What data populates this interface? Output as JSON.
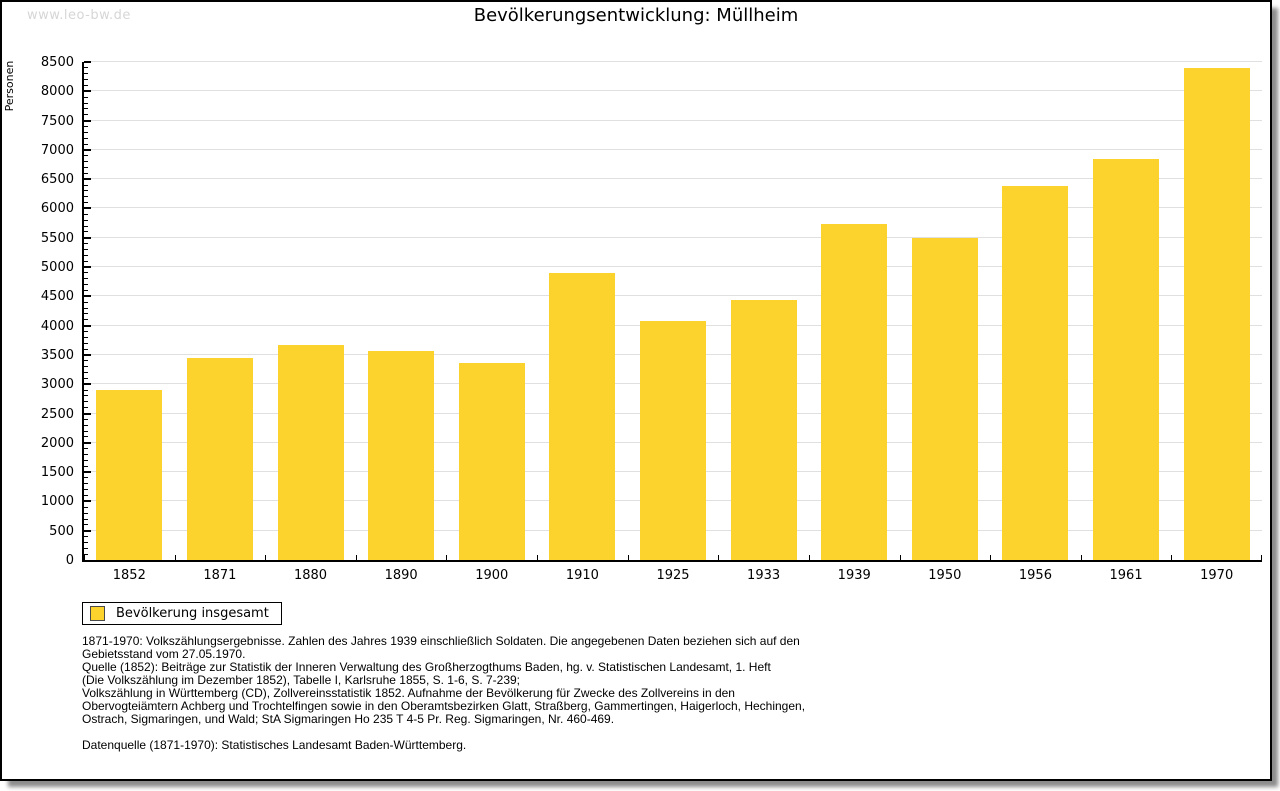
{
  "watermark": "www.leo-bw.de",
  "title": "Bevölkerungsentwicklung: Müllheim",
  "chart_data": {
    "type": "bar",
    "title": "Bevölkerungsentwicklung: Müllheim",
    "xlabel": "",
    "ylabel": "Personen",
    "categories": [
      "1852",
      "1871",
      "1880",
      "1890",
      "1900",
      "1910",
      "1925",
      "1933",
      "1939",
      "1950",
      "1956",
      "1961",
      "1970"
    ],
    "values": [
      2900,
      3450,
      3670,
      3560,
      3370,
      4900,
      4080,
      4430,
      5730,
      5500,
      6390,
      6850,
      8390
    ],
    "ylim": [
      0,
      8500
    ],
    "ytick_step": 500,
    "ytick_minor_step": 100,
    "grid": "horizontal-major",
    "legend_position": "bottom-left",
    "bar_color": "#fcd32d"
  },
  "legend": {
    "label": "Bevölkerung insgesamt",
    "swatch_color": "#fcd32d"
  },
  "footnotes": {
    "lines": [
      "1871-1970: Volkszählungsergebnisse. Zahlen des Jahres 1939 einschließlich Soldaten. Die angegebenen Daten beziehen sich auf den",
      "Gebietsstand vom 27.05.1970.",
      "Quelle (1852): Beiträge zur Statistik der Inneren Verwaltung des Großherzogthums Baden, hg. v. Statistischen Landesamt, 1. Heft",
      "(Die Volkszählung im Dezember 1852), Tabelle I, Karlsruhe 1855, S. 1-6, S. 7-239;",
      "Volkszählung in Württemberg (CD), Zollvereinsstatistik 1852. Aufnahme der Bevölkerung für Zwecke des Zollvereins in den",
      "Obervogteiämtern Achberg und Trochtelfingen sowie in den Oberamtsbezirken Glatt, Straßberg, Gammertingen, Haigerloch, Hechingen,",
      "Ostrach, Sigmaringen, und Wald; StA Sigmaringen Ho 235 T 4-5 Pr. Reg. Sigmaringen, Nr. 460-469.",
      "",
      "Datenquelle (1871-1970): Statistisches Landesamt Baden-Württemberg."
    ]
  },
  "colors": {
    "bar": "#fcd32d",
    "gridline": "#e0e0e0",
    "axis": "#000000",
    "watermark": "#d6d6d6",
    "background": "#ffffff"
  }
}
